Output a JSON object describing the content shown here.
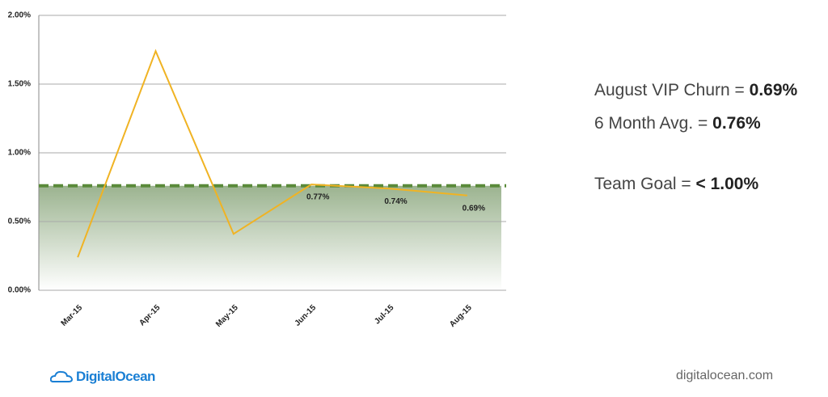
{
  "chart_data": {
    "type": "line",
    "categories": [
      "Mar-15",
      "Apr-15",
      "May-15",
      "Jun-15",
      "Jul-15",
      "Aug-15"
    ],
    "series": [
      {
        "name": "VIP Churn",
        "color": "#f0b323",
        "values": [
          0.24,
          1.74,
          0.41,
          0.77,
          0.74,
          0.69
        ],
        "value_labels": [
          null,
          null,
          null,
          "0.77%",
          "0.74%",
          "0.69%"
        ]
      }
    ],
    "average_line": {
      "value": 0.76,
      "color": "#5a8a3a"
    },
    "ylim": [
      0,
      2
    ],
    "yticks": [
      {
        "value": 0,
        "label": "0.00%"
      },
      {
        "value": 0.5,
        "label": "0.50%"
      },
      {
        "value": 1,
        "label": "1.00%"
      },
      {
        "value": 1.5,
        "label": "1.50%"
      },
      {
        "value": 2,
        "label": "2.00%"
      }
    ],
    "grid": true
  },
  "summary": [
    {
      "label": "August VIP Churn =",
      "value": "0.69%"
    },
    {
      "label": "6 Month Avg. =",
      "value": "0.76%"
    },
    {
      "label": "Team Goal =",
      "value": "< 1.00%"
    }
  ],
  "footer": {
    "brand": "DigitalOcean",
    "url": "digitalocean.com"
  }
}
